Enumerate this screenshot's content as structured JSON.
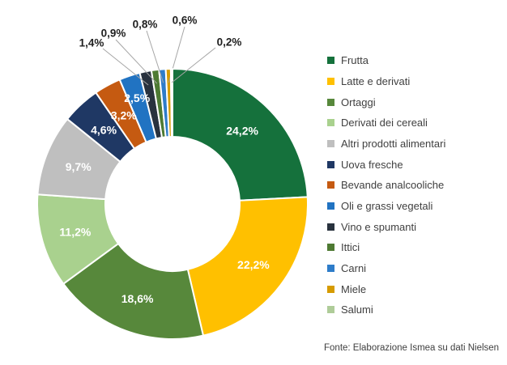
{
  "source_note": "Fonte: Elaborazione Ismea su dati Nielsen",
  "colors": {
    "background": "#FFFFFF",
    "legend_text": "#404040",
    "source_text": "#404040",
    "inside_label_text": "#FFFFFF",
    "callout_label_text": "#1F1F1F",
    "leader_line": "#A6A6A6",
    "slice_border": "#FFFFFF"
  },
  "chart_data": {
    "type": "pie",
    "subtype": "donut",
    "unit": "%",
    "decimal_separator": ",",
    "legend_position": "right",
    "title": "",
    "slices": [
      {
        "label": "Frutta",
        "value": 24.2,
        "display": "24,2%",
        "color": "#15713C",
        "label_mode": "inside"
      },
      {
        "label": "Latte e derivati",
        "value": 22.2,
        "display": "22,2%",
        "color": "#FFC000",
        "label_mode": "inside"
      },
      {
        "label": "Ortaggi",
        "value": 18.6,
        "display": "18,6%",
        "color": "#57883B",
        "label_mode": "inside"
      },
      {
        "label": "Derivati dei cereali",
        "value": 11.2,
        "display": "11,2%",
        "color": "#A9D18E",
        "label_mode": "inside"
      },
      {
        "label": "Altri prodotti alimentari",
        "value": 9.7,
        "display": "9,7%",
        "color": "#BFBFBF",
        "label_mode": "inside"
      },
      {
        "label": "Uova fresche",
        "value": 4.6,
        "display": "4,6%",
        "color": "#1F3864",
        "label_mode": "inside"
      },
      {
        "label": "Bevande analcooliche",
        "value": 3.2,
        "display": "3,2%",
        "color": "#C55A11",
        "label_mode": "inside"
      },
      {
        "label": "Oli e grassi vegetali",
        "value": 2.5,
        "display": "2,5%",
        "color": "#2173C2",
        "label_mode": "inside"
      },
      {
        "label": "Vino e spumanti",
        "value": 1.4,
        "display": "1,4%",
        "color": "#29323E",
        "label_mode": "callout"
      },
      {
        "label": "Ittici",
        "value": 0.9,
        "display": "0,9%",
        "color": "#4E7A33",
        "label_mode": "callout"
      },
      {
        "label": "Carni",
        "value": 0.8,
        "display": "0,8%",
        "color": "#2E7CC9",
        "label_mode": "callout"
      },
      {
        "label": "Miele",
        "value": 0.6,
        "display": "0,6%",
        "color": "#D69B00",
        "label_mode": "callout"
      },
      {
        "label": "Salumi",
        "value": 0.2,
        "display": "0,2%",
        "color": "#AFCC99",
        "label_mode": "callout"
      }
    ]
  }
}
